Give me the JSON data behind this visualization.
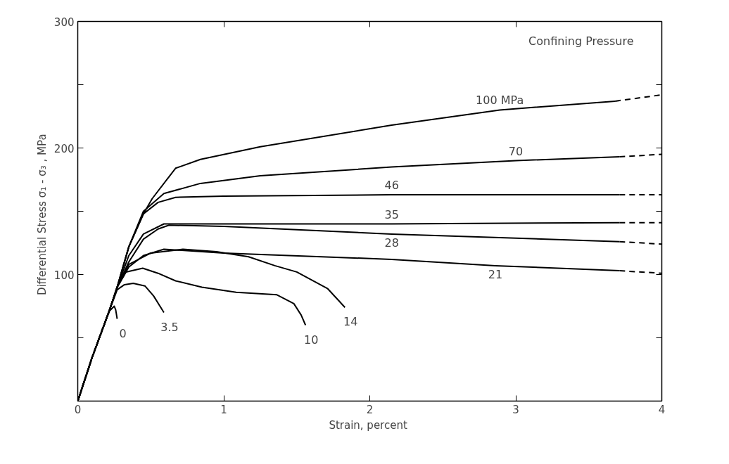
{
  "chart_data": {
    "type": "line",
    "xlabel": "Strain,  percent",
    "ylabel": "Differential  Stress  σ₁ - σ₃ , MPa",
    "xlim": [
      0,
      4
    ],
    "ylim": [
      0,
      300
    ],
    "xticks": [
      0,
      1,
      2,
      3,
      4
    ],
    "yticks": [
      {
        "value": 50,
        "label": null
      },
      100,
      {
        "value": 150,
        "label": null
      },
      200,
      {
        "value": 250,
        "label": null
      },
      300
    ],
    "grid": false,
    "marker": "none",
    "line_style": "solid",
    "series": [
      {
        "name": "0",
        "color": "#000000",
        "x": [
          0,
          0.1,
          0.215,
          0.25,
          0.26,
          0.27
        ],
        "values": [
          0,
          35,
          71,
          75,
          72,
          65
        ]
      },
      {
        "name": "3.5",
        "color": "#000000",
        "x": [
          0,
          0.1,
          0.215,
          0.27,
          0.32,
          0.38,
          0.46,
          0.52,
          0.59
        ],
        "values": [
          0,
          35,
          71,
          88,
          92,
          93,
          91,
          83,
          70
        ]
      },
      {
        "name": "10",
        "color": "#000000",
        "x": [
          0,
          0.1,
          0.215,
          0.27,
          0.33,
          0.445,
          0.55,
          0.67,
          0.85,
          1.085,
          1.364,
          1.48,
          1.53,
          1.56
        ],
        "values": [
          0,
          35,
          71,
          90,
          102,
          105,
          101,
          95,
          90,
          86,
          84,
          77,
          68,
          60
        ]
      },
      {
        "name": "14",
        "color": "#000000",
        "x": [
          0,
          0.1,
          0.215,
          0.27,
          0.35,
          0.5,
          0.72,
          0.95,
          1.17,
          1.35,
          1.5,
          1.71,
          1.83
        ],
        "values": [
          0,
          35,
          71,
          90,
          108,
          117,
          120,
          118,
          114,
          107,
          102,
          89,
          74
        ]
      },
      {
        "name": "21",
        "color": "#000000",
        "x": [
          0,
          0.1,
          0.215,
          0.27,
          0.35,
          0.45,
          0.59,
          1.0,
          2.15,
          2.86,
          3.71
        ],
        "values": [
          0,
          35,
          71,
          90,
          106,
          115,
          120,
          117,
          112,
          107,
          103
        ]
      },
      {
        "name": "28",
        "color": "#000000",
        "x": [
          0,
          0.1,
          0.215,
          0.27,
          0.35,
          0.45,
          0.55,
          0.625,
          1.0,
          2.15,
          3.71
        ],
        "values": [
          0,
          35,
          71,
          90,
          110,
          128,
          136,
          139,
          138,
          132,
          126
        ]
      },
      {
        "name": "35",
        "color": "#000000",
        "x": [
          0,
          0.1,
          0.215,
          0.27,
          0.35,
          0.45,
          0.59,
          1.0,
          2.15,
          3.71
        ],
        "values": [
          0,
          35,
          71,
          90,
          115,
          132,
          140,
          140,
          140,
          141
        ]
      },
      {
        "name": "46",
        "color": "#000000",
        "x": [
          0,
          0.1,
          0.215,
          0.27,
          0.35,
          0.45,
          0.55,
          0.67,
          1.0,
          2.15,
          3.71
        ],
        "values": [
          0,
          35,
          71,
          90,
          122,
          148,
          157,
          161,
          162,
          163,
          163
        ]
      },
      {
        "name": "70",
        "color": "#000000",
        "x": [
          0,
          0.1,
          0.215,
          0.27,
          0.35,
          0.45,
          0.59,
          0.84,
          1.25,
          2.15,
          3.0,
          3.71
        ],
        "values": [
          0,
          35,
          71,
          90,
          122,
          150,
          164,
          172,
          178,
          185,
          190,
          193
        ]
      },
      {
        "name": "100 MPa",
        "color": "#000000",
        "x": [
          0,
          0.1,
          0.215,
          0.27,
          0.35,
          0.45,
          0.51,
          0.67,
          0.84,
          1.25,
          2.15,
          2.89,
          3.68
        ],
        "values": [
          0,
          35,
          71,
          90,
          122,
          148,
          160,
          184,
          191,
          201,
          218,
          230,
          237
        ]
      },
      {
        "color": "#000000",
        "line_style": "dashed",
        "x": [
          3.71,
          4
        ],
        "values": [
          103,
          101
        ]
      },
      {
        "color": "#000000",
        "line_style": "dashed",
        "x": [
          3.71,
          4
        ],
        "values": [
          126,
          124
        ]
      },
      {
        "color": "#000000",
        "line_style": "dashed",
        "x": [
          3.71,
          4
        ],
        "values": [
          141,
          141
        ]
      },
      {
        "color": "#000000",
        "line_style": "dashed",
        "x": [
          3.71,
          4
        ],
        "values": [
          163,
          163
        ]
      },
      {
        "color": "#000000",
        "line_style": "dashed",
        "x": [
          3.71,
          4
        ],
        "values": [
          193,
          195
        ]
      },
      {
        "color": "#000000",
        "line_style": "dashed",
        "x": [
          3.68,
          4
        ],
        "values": [
          237,
          242
        ]
      }
    ],
    "annotations": [
      "Confining Pressure"
    ]
  }
}
